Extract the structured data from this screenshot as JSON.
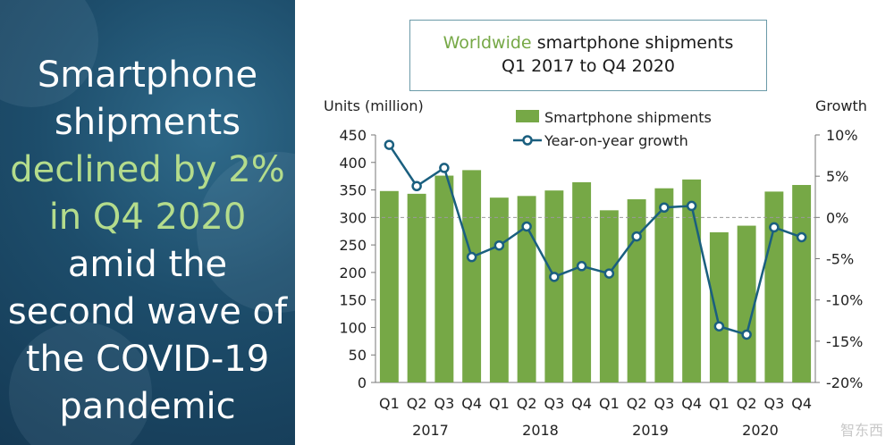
{
  "headline": {
    "lines": [
      {
        "text": "Smartphone",
        "highlight": false
      },
      {
        "text": "shipments",
        "highlight": false
      },
      {
        "text": "declined by 2%",
        "highlight": true
      },
      {
        "text": "in Q4 2020",
        "highlight": true
      },
      {
        "text": "amid the",
        "highlight": false
      },
      {
        "text": "second wave of",
        "highlight": false
      },
      {
        "text": "the COVID-19",
        "highlight": false
      },
      {
        "text": "pandemic",
        "highlight": false
      }
    ]
  },
  "colors": {
    "bar": "#76a846",
    "line": "#1a5f7f",
    "highlight": "#b4dc8c",
    "panel": "#1d4d6b"
  },
  "chart_data": {
    "type": "bar",
    "title_accent": "Worldwide",
    "title_rest": "smartphone shipments",
    "subtitle": "Q1 2017 to Q4 2020",
    "ylabel_left": "Units (million)",
    "ylabel_right": "Growth",
    "ylim": [
      0,
      450
    ],
    "y_ticks": [
      0,
      50,
      100,
      150,
      200,
      250,
      300,
      350,
      400,
      450
    ],
    "y2lim": [
      -20,
      10
    ],
    "y2_ticks": [
      "10%",
      "5%",
      "0%",
      "-5%",
      "-10%",
      "-15%",
      "-20%"
    ],
    "categories": [
      "Q1",
      "Q2",
      "Q3",
      "Q4",
      "Q1",
      "Q2",
      "Q3",
      "Q4",
      "Q1",
      "Q2",
      "Q3",
      "Q4",
      "Q1",
      "Q2",
      "Q3",
      "Q4"
    ],
    "years": [
      "2017",
      "2018",
      "2019",
      "2020"
    ],
    "series": [
      {
        "name": "Smartphone shipments",
        "type": "bar",
        "values": [
          348,
          343,
          376,
          386,
          336,
          339,
          349,
          364,
          313,
          333,
          353,
          369,
          273,
          285,
          347,
          359
        ]
      },
      {
        "name": "Year-on-year growth",
        "type": "line",
        "axis": "right",
        "values": [
          8.8,
          3.8,
          6.0,
          -4.8,
          -3.4,
          -1.1,
          -7.2,
          -5.9,
          -6.8,
          -2.3,
          1.2,
          1.4,
          -13.2,
          -14.2,
          -1.2,
          -2.4
        ]
      }
    ],
    "legend": [
      "Smartphone shipments",
      "Year-on-year growth"
    ],
    "reference_line": 0,
    "grid": false
  },
  "watermark": "智东西"
}
